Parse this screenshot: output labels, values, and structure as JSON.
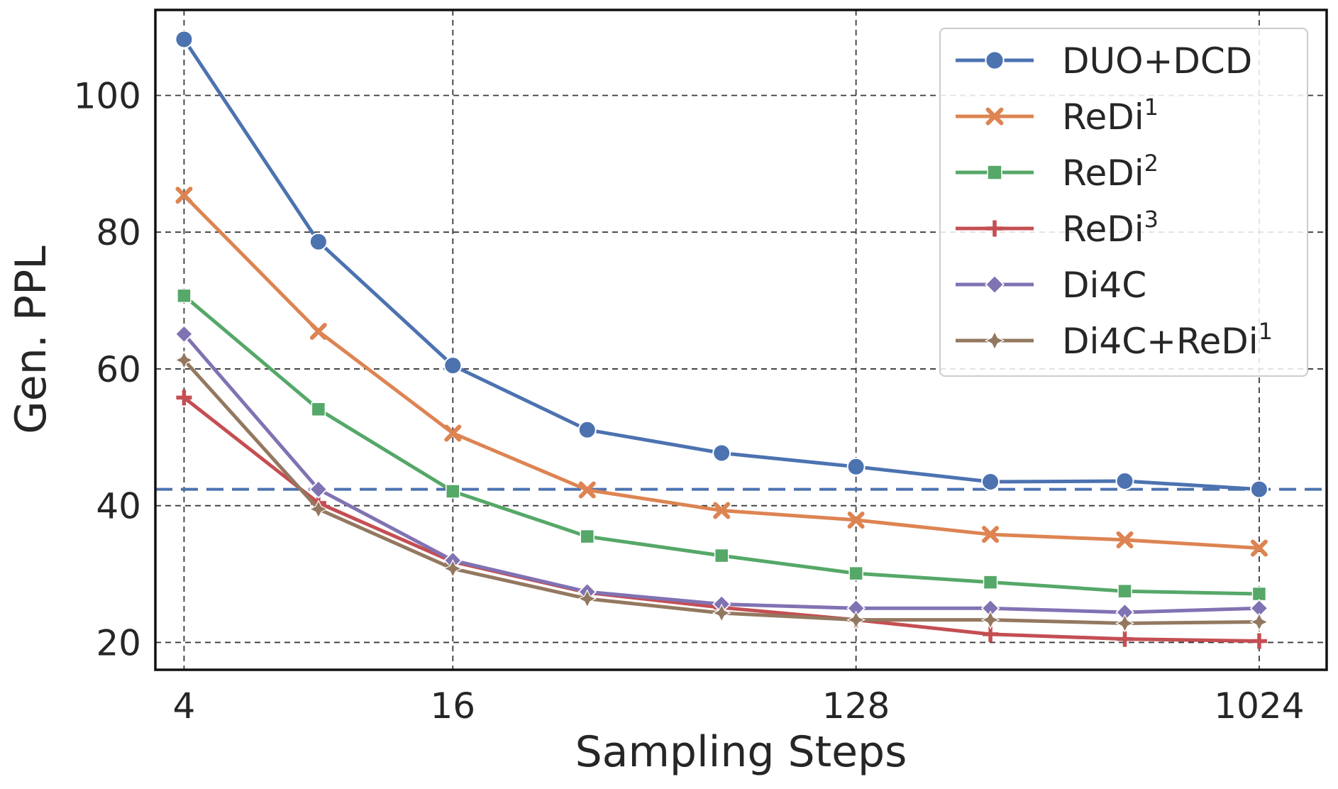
{
  "chart_data": {
    "type": "line",
    "xlabel": "Sampling Steps",
    "ylabel": "Gen. PPL",
    "x_scale": "log2",
    "xlim": [
      3.45,
      1450
    ],
    "ylim": [
      16,
      112.5
    ],
    "x_ticks": [
      4,
      16,
      128,
      1024
    ],
    "x_tick_labels": [
      "4",
      "16",
      "128",
      "1024"
    ],
    "y_ticks": [
      20,
      40,
      60,
      80,
      100
    ],
    "y_tick_labels": [
      "20",
      "40",
      "60",
      "80",
      "100"
    ],
    "grid": true,
    "legend_position": "top-right",
    "x": [
      4,
      8,
      16,
      32,
      64,
      128,
      256,
      512,
      1024
    ],
    "reference_line": {
      "y": 42.4,
      "color": "#4c72b0",
      "style": "dashed"
    },
    "series": [
      {
        "name": "DUO+DCD",
        "name_main": "DUO+DCD",
        "name_sup": "",
        "color": "#4c72b0",
        "marker": "circle",
        "values": [
          108.2,
          78.6,
          60.5,
          51.1,
          47.7,
          45.7,
          43.5,
          43.6,
          42.4
        ]
      },
      {
        "name": "ReDi1",
        "name_main": "ReDi",
        "name_sup": "1",
        "color": "#dd8452",
        "marker": "x",
        "values": [
          85.4,
          65.5,
          50.6,
          42.3,
          39.3,
          37.9,
          35.8,
          35.0,
          33.8
        ]
      },
      {
        "name": "ReDi2",
        "name_main": "ReDi",
        "name_sup": "2",
        "color": "#55a868",
        "marker": "square",
        "values": [
          70.7,
          54.1,
          42.1,
          35.5,
          32.7,
          30.1,
          28.8,
          27.5,
          27.1
        ]
      },
      {
        "name": "ReDi3",
        "name_main": "ReDi",
        "name_sup": "3",
        "color": "#c44e52",
        "marker": "plus",
        "values": [
          55.8,
          40.4,
          31.8,
          27.3,
          25.1,
          23.3,
          21.2,
          20.5,
          20.2
        ]
      },
      {
        "name": "Di4C",
        "name_main": "Di4C",
        "name_sup": "",
        "color": "#8172b3",
        "marker": "diamond",
        "values": [
          65.1,
          42.4,
          32.0,
          27.4,
          25.6,
          25.0,
          25.0,
          24.4,
          25.0
        ]
      },
      {
        "name": "Di4C+ReDi1",
        "name_main": "Di4C+ReDi",
        "name_sup": "1",
        "color": "#937860",
        "marker": "star4",
        "values": [
          61.3,
          39.5,
          30.8,
          26.4,
          24.3,
          23.3,
          23.3,
          22.8,
          23.0
        ]
      }
    ]
  }
}
